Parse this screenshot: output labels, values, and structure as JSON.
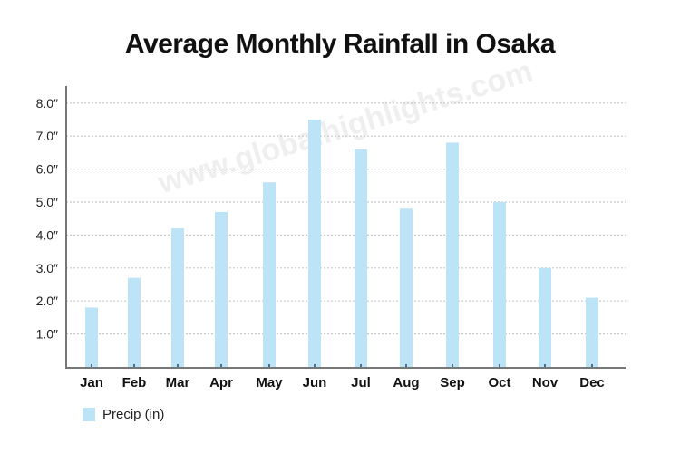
{
  "chart_data": {
    "type": "bar",
    "title": "Average Monthly Rainfall in Osaka",
    "categories": [
      "Jan",
      "Feb",
      "Mar",
      "Apr",
      "May",
      "Jun",
      "Jul",
      "Aug",
      "Sep",
      "Oct",
      "Nov",
      "Dec"
    ],
    "series": [
      {
        "name": "Precip (in)",
        "color": "#bde3f6",
        "values": [
          1.8,
          2.7,
          4.2,
          4.7,
          5.6,
          7.5,
          6.6,
          4.8,
          6.8,
          5.0,
          3.0,
          2.1
        ]
      }
    ],
    "y_ticks": [
      "1.0″",
      "2.0″",
      "3.0″",
      "4.0″",
      "5.0″",
      "6.0″",
      "7.0″",
      "8.0″"
    ],
    "y_tick_values": [
      1,
      2,
      3,
      4,
      5,
      6,
      7,
      8
    ],
    "ylim": [
      0,
      8.5
    ],
    "xlabel": "",
    "ylabel": "",
    "grid": "horizontal dotted",
    "legend": "bottom-left",
    "watermark": "www.globalhighlights.com"
  }
}
